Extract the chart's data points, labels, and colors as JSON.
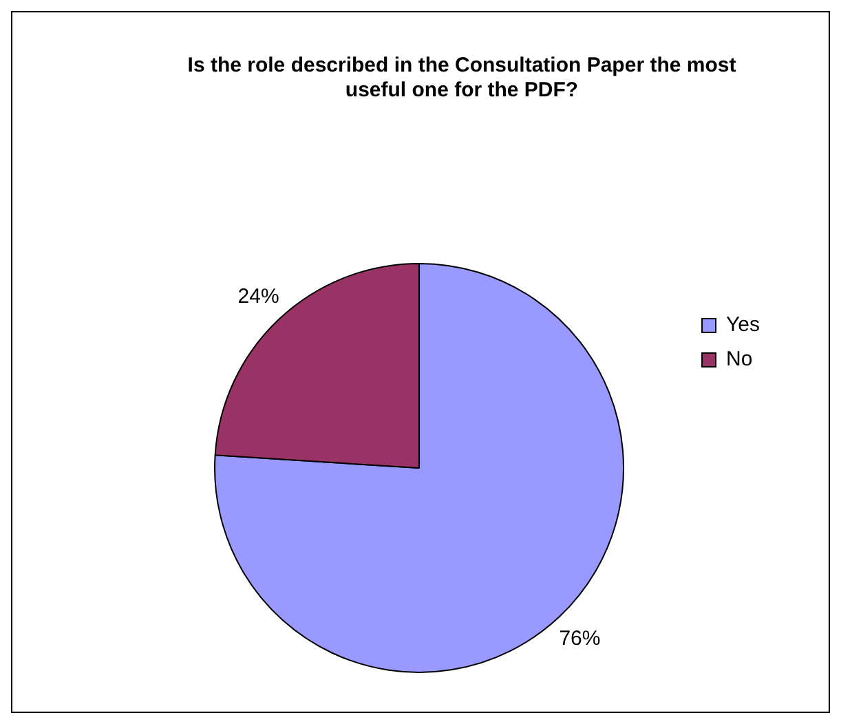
{
  "chart_data": {
    "type": "pie",
    "title": "Is the role described in the Consultation Paper the most useful one for the PDF?",
    "categories": [
      "Yes",
      "No"
    ],
    "values": [
      76,
      24
    ],
    "value_labels": [
      "76%",
      "24%"
    ],
    "colors": [
      "#9999ff",
      "#993366"
    ],
    "legend": "right"
  }
}
